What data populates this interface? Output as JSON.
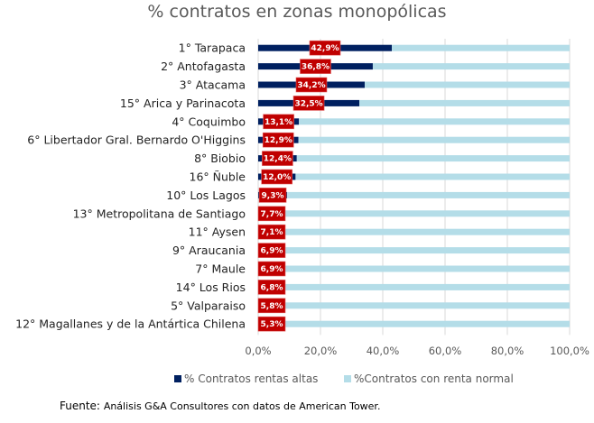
{
  "chart_data": {
    "type": "bar",
    "orientation": "horizontal",
    "stacked": "100%",
    "title": "% contratos en zonas monopólicas",
    "categories": [
      "1° Tarapaca",
      "2° Antofagasta",
      "3° Atacama",
      "15° Arica y Parinacota",
      "4° Coquimbo",
      "6° Libertador Gral. Bernardo O'Higgins",
      "8° Biobio",
      "16° Ñuble",
      "10° Los Lagos",
      "13° Metropolitana de Santiago",
      "11° Aysen",
      "9° Araucania",
      "7° Maule",
      "14° Los Rios",
      "5° Valparaiso",
      "12° Magallanes y de la Antártica Chilena"
    ],
    "series": [
      {
        "name": "% Contratos rentas altas",
        "color": "#002060",
        "values": [
          42.9,
          36.8,
          34.2,
          32.5,
          13.1,
          12.9,
          12.4,
          12.0,
          9.3,
          7.7,
          7.1,
          6.9,
          6.9,
          6.8,
          5.8,
          5.3
        ]
      },
      {
        "name": "%Contratos con renta normal",
        "color": "#B4DDE8",
        "values": [
          57.1,
          63.2,
          65.8,
          67.5,
          86.9,
          87.1,
          87.6,
          88.0,
          90.7,
          92.3,
          92.9,
          93.1,
          93.1,
          93.2,
          94.2,
          94.7
        ]
      }
    ],
    "data_labels": [
      "42,9%",
      "36,8%",
      "34,2%",
      "32,5%",
      "13,1%",
      "12,9%",
      "12,4%",
      "12,0%",
      "9,3%",
      "7,7%",
      "7,1%",
      "6,9%",
      "6,9%",
      "6,8%",
      "5,8%",
      "5,3%"
    ],
    "label_color": "#C00000",
    "xlim": [
      0,
      100
    ],
    "x_ticks": [
      "0,0%",
      "20,0%",
      "40,0%",
      "60,0%",
      "80,0%",
      "100,0%"
    ],
    "grid": true,
    "legend_position": "bottom"
  },
  "source": {
    "prefix": "Fuente:",
    "text": "Análisis G&A Consultores con datos de American Tower."
  }
}
